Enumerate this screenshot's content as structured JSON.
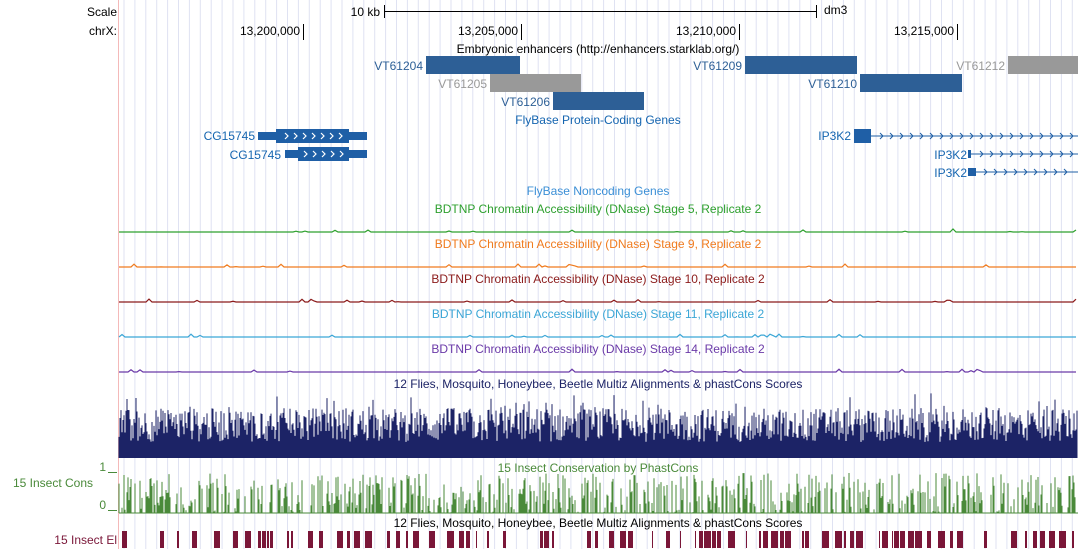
{
  "ruler": {
    "scale_label": "Scale",
    "chrom_label": "chrX:",
    "scale_bar_label": "10 kb",
    "assembly": "dm3",
    "positions": [
      "13,200,000",
      "13,205,000",
      "13,210,000",
      "13,215,000"
    ]
  },
  "tracks": {
    "enhancers": {
      "title": "Embryonic enhancers (http://enhancers.starklab.org/)",
      "items": [
        "VT61204",
        "VT61205",
        "VT61206",
        "VT61209",
        "VT61210",
        "VT61212"
      ]
    },
    "coding": {
      "title": "FlyBase Protein-Coding Genes",
      "items": [
        "CG15745",
        "CG15745",
        "IP3K2",
        "IP3K2",
        "IP3K2"
      ]
    },
    "noncoding": {
      "title": "FlyBase Noncoding Genes"
    },
    "dnase": [
      {
        "title": "BDTNP Chromatin Accessibility (DNase) Stage 5, Replicate 2",
        "color": "#2ea02e"
      },
      {
        "title": "BDTNP Chromatin Accessibility (DNase) Stage 9, Replicate 2",
        "color": "#f07b1e"
      },
      {
        "title": "BDTNP Chromatin Accessibility (DNase) Stage 10, Replicate 2",
        "color": "#8b1a1a"
      },
      {
        "title": "BDTNP Chromatin Accessibility (DNase) Stage 11, Replicate 2",
        "color": "#3ba6d6"
      },
      {
        "title": "BDTNP Chromatin Accessibility (DNase) Stage 14, Replicate 2",
        "color": "#6b3aa8"
      }
    ],
    "multiz": {
      "title": "12 Flies, Mosquito, Honeybee, Beetle Multiz Alignments & phastCons Scores"
    },
    "phastcons": {
      "title": "15 Insect Conservation by PhastCons",
      "side_label": "15 Insect Cons",
      "ymax": "1",
      "ymin": "0"
    },
    "elements": {
      "title": "12 Flies, Mosquito, Honeybee, Beetle Multiz Alignments & phastCons Scores",
      "side_label": "15 Insect El"
    }
  },
  "colors": {
    "gene_blue": "#1f5fa6",
    "enhancer_blue": "#2d5f96",
    "enhancer_grey": "#999999",
    "multiz_navy": "#1c2366",
    "cons_green": "#4a8a3a",
    "el_maroon": "#7a1638",
    "label_blue": "#1565b0"
  }
}
